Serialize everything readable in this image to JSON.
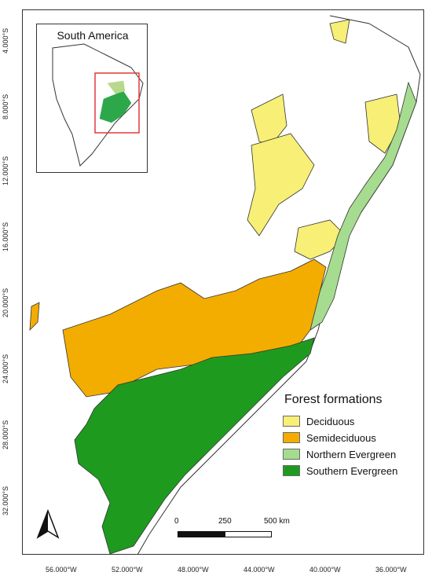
{
  "inset": {
    "title": "South America"
  },
  "legend": {
    "title": "Forest formations",
    "items": [
      {
        "label": "Deciduous",
        "color": "#f7ef76"
      },
      {
        "label": "Semideciduous",
        "color": "#f2ad00"
      },
      {
        "label": "Northern Evergreen",
        "color": "#a6dc8f"
      },
      {
        "label": "Southern Evergreen",
        "color": "#1e9b1f"
      }
    ]
  },
  "grid": {
    "lat_labels": [
      "4.000°S",
      "8.000°S",
      "12.000°S",
      "16.000°S",
      "20.000°S",
      "24.000°S",
      "28.000°S",
      "32.000°S"
    ],
    "lon_labels": [
      "56.000°W",
      "52.000°W",
      "48.000°W",
      "44.000°W",
      "40.000°W",
      "36.000°W"
    ]
  },
  "scale_bar": {
    "labels": [
      "0",
      "250",
      "500 km"
    ]
  },
  "north_arrow": {
    "icon": "north-arrow-icon"
  }
}
